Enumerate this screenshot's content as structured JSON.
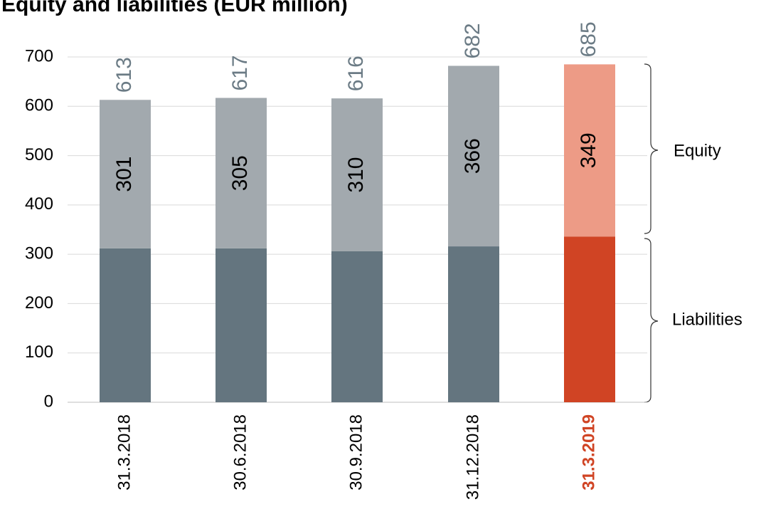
{
  "chart_data": {
    "type": "stacked_bar",
    "title": "Equity and liabilities (EUR million)",
    "categories": [
      "31.3.2018",
      "30.6.2018",
      "30.9.2018",
      "31.12.2018",
      "31.3.2019"
    ],
    "category_colors": [
      "#000000",
      "#000000",
      "#000000",
      "#000000",
      "#d04424"
    ],
    "series": [
      {
        "name": "Liabilities",
        "colors": [
          "#64757f",
          "#64757f",
          "#64757f",
          "#64757f",
          "#d04424"
        ],
        "values": [
          312,
          312,
          306,
          316,
          336
        ]
      },
      {
        "name": "Equity",
        "colors": [
          "#a2a9ae",
          "#a2a9ae",
          "#a2a9ae",
          "#a2a9ae",
          "#ed9b86"
        ],
        "values": [
          301,
          305,
          310,
          366,
          349
        ]
      }
    ],
    "totals": [
      613,
      617,
      616,
      682,
      685
    ],
    "ylim": [
      0,
      700
    ],
    "yticks": [
      0,
      100,
      200,
      300,
      400,
      500,
      600,
      700
    ],
    "grid": true
  }
}
